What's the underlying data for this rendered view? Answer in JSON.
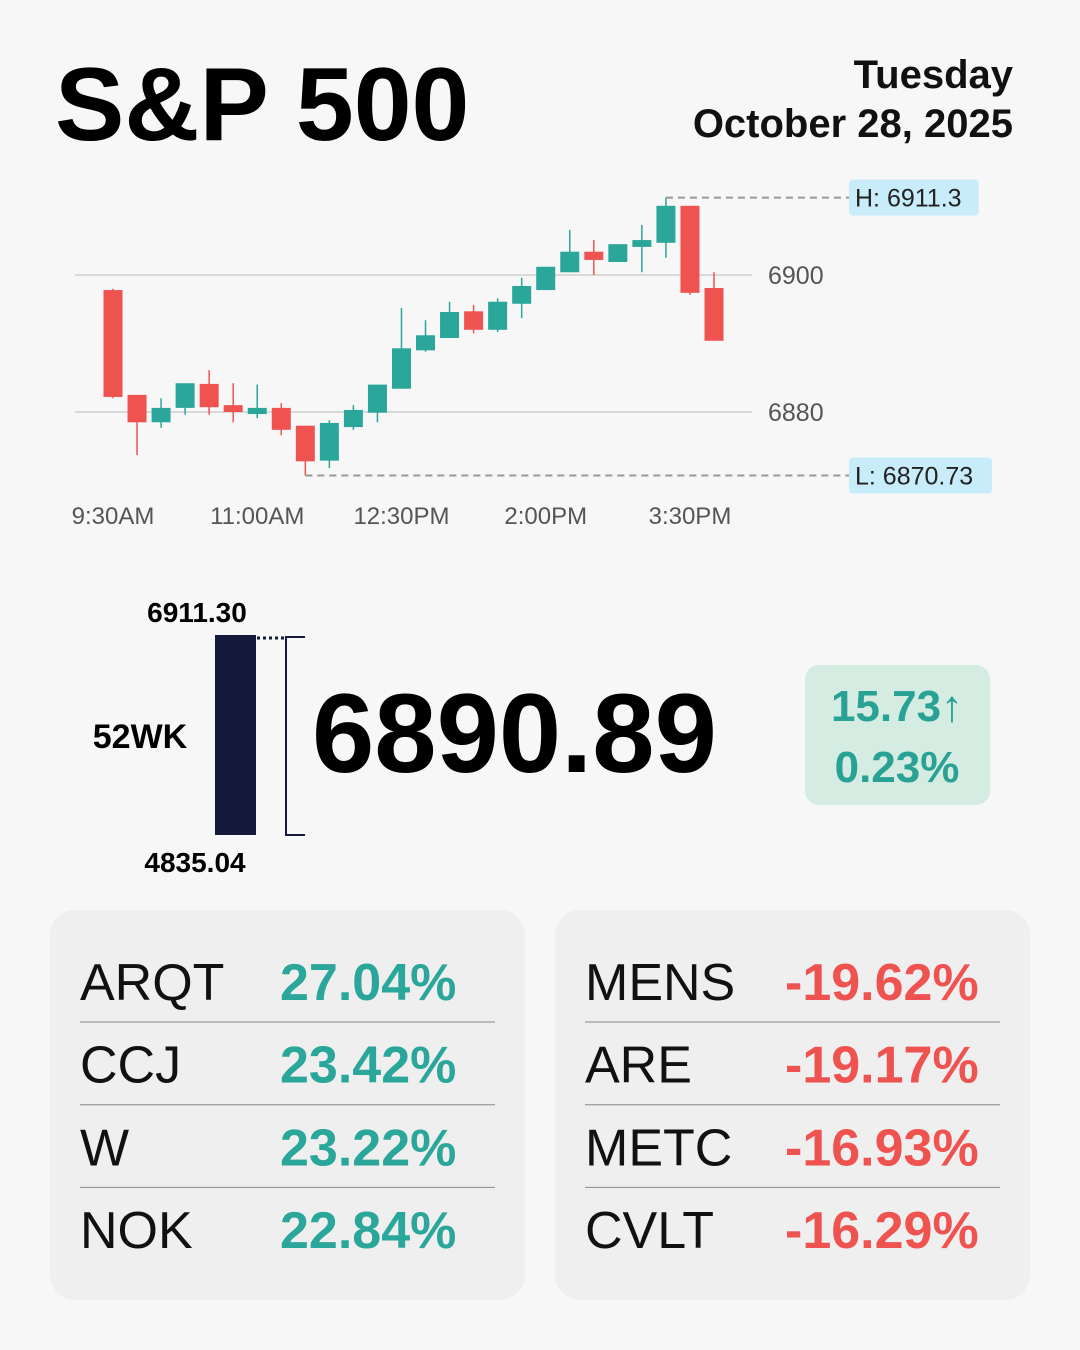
{
  "title": "S&P 500",
  "day": "Tuesday",
  "date": "October 28, 2025",
  "chart_data": {
    "type": "candlestick",
    "categories": [
      "9:30AM",
      null,
      null,
      null,
      null,
      null,
      "11:00AM",
      null,
      null,
      null,
      null,
      null,
      "12:30PM",
      null,
      null,
      null,
      null,
      null,
      "2:00PM",
      null,
      null,
      null,
      null,
      null,
      "3:30PM",
      null
    ],
    "open": [
      6897.8,
      6882.5,
      6878.5,
      6880.6,
      6884.1,
      6881.0,
      6879.7,
      6880.6,
      6878.0,
      6872.9,
      6877.8,
      6879.9,
      6883.4,
      6889.0,
      6890.8,
      6894.7,
      6892.0,
      6895.8,
      6897.8,
      6900.4,
      6903.4,
      6901.9,
      6904.1,
      6904.7,
      6910.1,
      6898.1
    ],
    "high": [
      6898.0,
      6882.5,
      6882.0,
      6884.2,
      6886.1,
      6884.2,
      6884.0,
      6881.3,
      6878.0,
      6878.8,
      6881.0,
      6884.0,
      6895.2,
      6893.4,
      6896.1,
      6895.6,
      6896.6,
      6899.6,
      6901.2,
      6906.6,
      6905.1,
      6904.5,
      6907.3,
      6911.3,
      6910.1,
      6900.4
    ],
    "low": [
      6882.0,
      6873.7,
      6877.7,
      6879.6,
      6879.6,
      6878.5,
      6879.1,
      6876.6,
      6870.73,
      6871.8,
      6877.4,
      6878.5,
      6883.4,
      6888.8,
      6890.8,
      6891.5,
      6891.7,
      6893.7,
      6897.8,
      6900.4,
      6900.0,
      6901.9,
      6900.4,
      6902.5,
      6897.1,
      6890.4
    ],
    "close": [
      6882.2,
      6878.5,
      6880.6,
      6884.2,
      6880.7,
      6880.0,
      6880.6,
      6877.4,
      6872.8,
      6878.4,
      6880.3,
      6884.0,
      6889.3,
      6891.2,
      6894.6,
      6892.0,
      6896.1,
      6898.4,
      6901.2,
      6903.4,
      6902.2,
      6904.5,
      6905.1,
      6910.1,
      6897.4,
      6890.4
    ],
    "up_color": "#2ba69a",
    "down_color": "#ef5350",
    "ylim": [
      6868,
      6912
    ],
    "yticks": [
      6880,
      6900
    ],
    "grid": true,
    "annotations": [
      {
        "value": 6911.3,
        "label": "H: 6911.3",
        "index": 23
      },
      {
        "value": 6870.73,
        "label": "L: 6870.73",
        "index": 8
      }
    ]
  },
  "range": {
    "label": "52WK",
    "high": {
      "value": 6911.3,
      "label": "6911.30"
    },
    "low": {
      "value": 4835.04,
      "label": "4835.04"
    },
    "current": 6890.89
  },
  "change": {
    "value": 15.73,
    "label": "15.73↑"
  },
  "change_pct": {
    "value": 0.23,
    "label": "0.23%"
  },
  "gainers": [
    {
      "ticker": "ARQT",
      "change": "27.04%"
    },
    {
      "ticker": "CCJ",
      "change": "23.42%"
    },
    {
      "ticker": "W",
      "change": "23.22%"
    },
    {
      "ticker": "NOK",
      "change": "22.84%"
    }
  ],
  "losers": [
    {
      "ticker": "MENS",
      "change": "-19.62%"
    },
    {
      "ticker": "ARE",
      "change": "-19.17%"
    },
    {
      "ticker": "METC",
      "change": "-16.93%"
    },
    {
      "ticker": "CVLT",
      "change": "-16.29%"
    }
  ]
}
